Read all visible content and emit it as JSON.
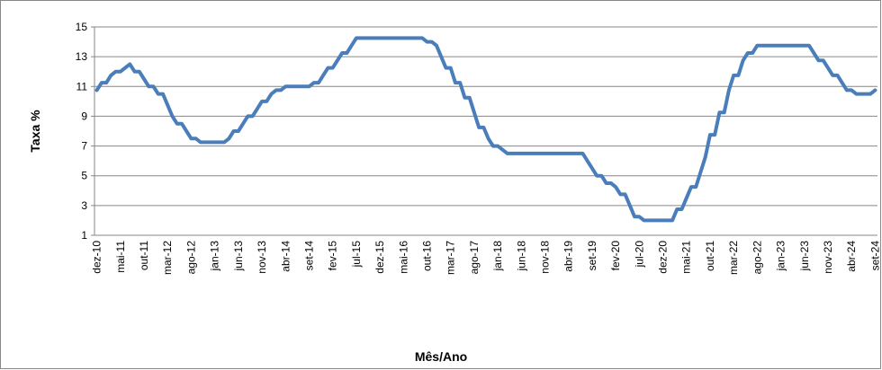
{
  "chart_data": {
    "type": "line",
    "x_label": "Mês/Ano",
    "y_label": "Taxa %",
    "categories": [
      "dez-10",
      null,
      null,
      null,
      null,
      "mai-11",
      null,
      null,
      null,
      null,
      "out-11",
      null,
      null,
      null,
      null,
      "mar-12",
      null,
      null,
      null,
      null,
      "ago-12",
      null,
      null,
      null,
      null,
      "jan-13",
      null,
      null,
      null,
      null,
      "jun-13",
      null,
      null,
      null,
      null,
      "nov-13",
      null,
      null,
      null,
      null,
      "abr-14",
      null,
      null,
      null,
      null,
      "set-14",
      null,
      null,
      null,
      null,
      "fev-15",
      null,
      null,
      null,
      null,
      "jul-15",
      null,
      null,
      null,
      null,
      "dez-15",
      null,
      null,
      null,
      null,
      "mai-16",
      null,
      null,
      null,
      null,
      "out-16",
      null,
      null,
      null,
      null,
      "mar-17",
      null,
      null,
      null,
      null,
      "ago-17",
      null,
      null,
      null,
      null,
      "jan-18",
      null,
      null,
      null,
      null,
      "jun-18",
      null,
      null,
      null,
      null,
      "nov-18",
      null,
      null,
      null,
      null,
      "abr-19",
      null,
      null,
      null,
      null,
      "set-19",
      null,
      null,
      null,
      null,
      "fev-20",
      null,
      null,
      null,
      null,
      "jul-20",
      null,
      null,
      null,
      null,
      "dez-20",
      null,
      null,
      null,
      null,
      "mai-21",
      null,
      null,
      null,
      null,
      "out-21",
      null,
      null,
      null,
      null,
      "mar-22",
      null,
      null,
      null,
      null,
      "ago-22",
      null,
      null,
      null,
      null,
      "jan-23",
      null,
      null,
      null,
      null,
      "jun-23",
      null,
      null,
      null,
      null,
      "nov-23",
      null,
      null,
      null,
      null,
      "abr-24",
      null,
      null,
      null,
      null,
      "set-24"
    ],
    "series": [
      {
        "color": "#4a7ebb",
        "values": [
          10.75,
          11.25,
          11.25,
          11.75,
          12,
          12,
          12.25,
          12.5,
          12,
          12,
          11.5,
          11,
          11,
          10.5,
          10.5,
          9.75,
          9,
          8.5,
          8.5,
          8,
          7.5,
          7.5,
          7.25,
          7.25,
          7.25,
          7.25,
          7.25,
          7.25,
          7.5,
          8,
          8,
          8.5,
          9,
          9,
          9.5,
          10,
          10,
          10.5,
          10.75,
          10.75,
          11,
          11,
          11,
          11,
          11,
          11,
          11.25,
          11.25,
          11.75,
          12.25,
          12.25,
          12.75,
          13.25,
          13.25,
          13.75,
          14.25,
          14.25,
          14.25,
          14.25,
          14.25,
          14.25,
          14.25,
          14.25,
          14.25,
          14.25,
          14.25,
          14.25,
          14.25,
          14.25,
          14.25,
          14,
          14,
          13.75,
          13,
          12.25,
          12.25,
          11.25,
          11.25,
          10.25,
          10.25,
          9.25,
          8.25,
          8.25,
          7.5,
          7,
          7,
          6.75,
          6.5,
          6.5,
          6.5,
          6.5,
          6.5,
          6.5,
          6.5,
          6.5,
          6.5,
          6.5,
          6.5,
          6.5,
          6.5,
          6.5,
          6.5,
          6.5,
          6.5,
          6,
          5.5,
          5,
          5,
          4.5,
          4.5,
          4.25,
          3.75,
          3.75,
          3,
          2.25,
          2.25,
          2,
          2,
          2,
          2,
          2,
          2,
          2,
          2.75,
          2.75,
          3.5,
          4.25,
          4.25,
          5.25,
          6.25,
          7.75,
          7.75,
          9.25,
          9.25,
          10.75,
          11.75,
          11.75,
          12.75,
          13.25,
          13.25,
          13.75,
          13.75,
          13.75,
          13.75,
          13.75,
          13.75,
          13.75,
          13.75,
          13.75,
          13.75,
          13.75,
          13.75,
          13.25,
          12.75,
          12.75,
          12.25,
          11.75,
          11.75,
          11.25,
          10.75,
          10.75,
          10.5,
          10.5,
          10.5,
          10.5,
          10.75
        ]
      }
    ],
    "ylim": [
      1,
      15
    ],
    "yticks": [
      1,
      3,
      5,
      7,
      9,
      11,
      13,
      15
    ],
    "grid": true
  }
}
